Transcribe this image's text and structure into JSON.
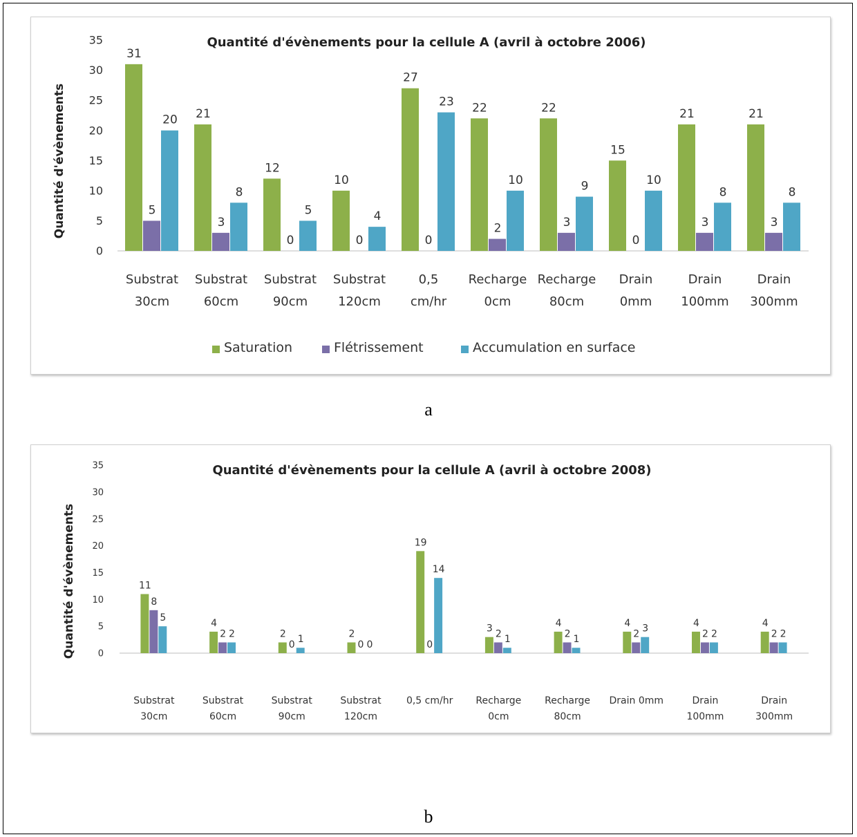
{
  "captions": [
    "a",
    "b"
  ],
  "legend": [
    "Saturation",
    "Flétrissement",
    "Accumulation en surface"
  ],
  "colors": {
    "saturation": "#8db04a",
    "fletrissement": "#7b6fa8",
    "accumulation": "#4fa6c6"
  },
  "chart_data": [
    {
      "type": "bar",
      "title": "Quantité d'évènements pour la cellule A (avril à octobre 2006)",
      "ylabel": "Quantité d'évènements",
      "xlabel": "",
      "ylim": [
        0,
        35
      ],
      "yticks": [
        0,
        5,
        10,
        15,
        20,
        25,
        30,
        35
      ],
      "categories": [
        [
          "Substrat",
          "30cm"
        ],
        [
          "Substrat",
          "60cm"
        ],
        [
          "Substrat",
          "90cm"
        ],
        [
          "Substrat",
          "120cm"
        ],
        [
          "0,5",
          "cm/hr"
        ],
        [
          "Recharge",
          "0cm"
        ],
        [
          "Recharge",
          "80cm"
        ],
        [
          "Drain",
          "0mm"
        ],
        [
          "Drain",
          "100mm"
        ],
        [
          "Drain",
          "300mm"
        ]
      ],
      "series": [
        {
          "name": "Saturation",
          "values": [
            31,
            21,
            12,
            10,
            27,
            22,
            22,
            15,
            21,
            21
          ]
        },
        {
          "name": "Flétrissement",
          "values": [
            5,
            3,
            0,
            0,
            0,
            2,
            3,
            0,
            3,
            3
          ]
        },
        {
          "name": "Accumulation en surface",
          "values": [
            20,
            8,
            5,
            4,
            23,
            10,
            9,
            10,
            8,
            8
          ]
        }
      ],
      "legend_position": "bottom",
      "grid": false
    },
    {
      "type": "bar",
      "title": "Quantité d'évènements pour la cellule A (avril à octobre 2008)",
      "ylabel": "Quantité d'évènements",
      "xlabel": "",
      "ylim": [
        0,
        35
      ],
      "yticks": [
        0,
        5,
        10,
        15,
        20,
        25,
        30,
        35
      ],
      "categories": [
        [
          "Substrat",
          "30cm"
        ],
        [
          "Substrat",
          "60cm"
        ],
        [
          "Substrat",
          "90cm"
        ],
        [
          "Substrat",
          "120cm"
        ],
        [
          "0,5 cm/hr"
        ],
        [
          "Recharge",
          "0cm"
        ],
        [
          "Recharge",
          "80cm"
        ],
        [
          "Drain 0mm"
        ],
        [
          "Drain",
          "100mm"
        ],
        [
          "Drain",
          "300mm"
        ]
      ],
      "series": [
        {
          "name": "Saturation",
          "values": [
            11,
            4,
            2,
            2,
            19,
            3,
            4,
            4,
            4,
            4
          ]
        },
        {
          "name": "Flétrissement",
          "values": [
            8,
            2,
            0,
            0,
            0,
            2,
            2,
            2,
            2,
            2
          ]
        },
        {
          "name": "Accumulation en surface",
          "values": [
            5,
            2,
            1,
            0,
            14,
            1,
            1,
            3,
            2,
            2
          ]
        }
      ],
      "legend_position": "bottom",
      "grid": false
    }
  ]
}
